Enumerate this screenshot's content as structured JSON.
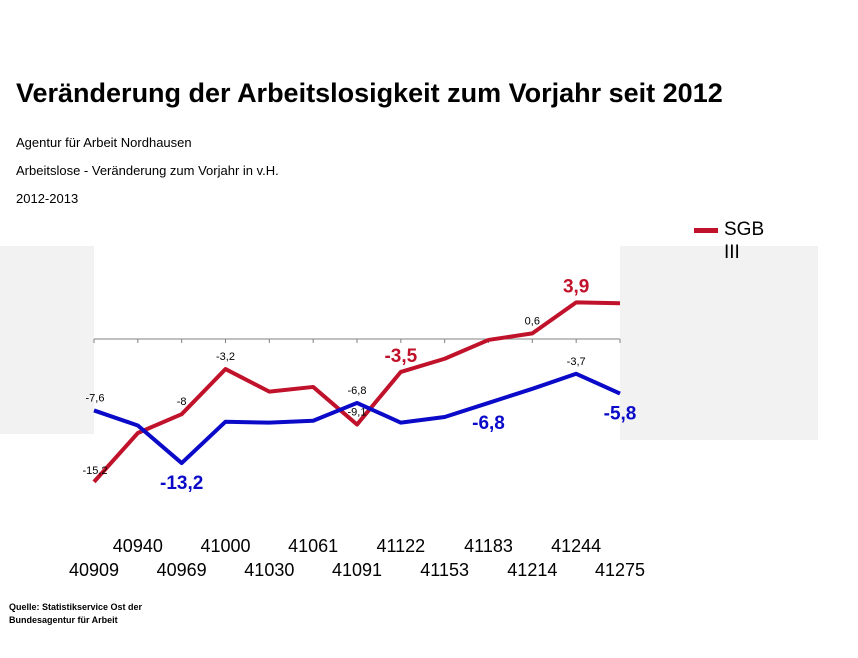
{
  "title": "Veränderung der Arbeitslosigkeit zum Vorjahr seit 2012",
  "subtitles": [
    "Agentur für Arbeit Nordhausen",
    "Arbeitslose  - Veränderung zum Vorjahr in v.H.",
    "2012-2013"
  ],
  "source": "Quelle: Statistikservice Ost der Bundesagentur für Arbeit",
  "chart_data": {
    "type": "line",
    "title": "Veränderung der Arbeitslosigkeit zum Vorjahr seit 2012",
    "x": [
      40909,
      40940,
      40969,
      41000,
      41030,
      41061,
      41091,
      41122,
      41153,
      41183,
      41214,
      41244,
      41275
    ],
    "x_tick_labels": [
      "40909",
      "40940",
      "40969",
      "41000",
      "41030",
      "41061",
      "41091",
      "41122",
      "41153",
      "41183",
      "41214",
      "41244",
      "41275"
    ],
    "ylim": [
      -16,
      6
    ],
    "grid": false,
    "legend": {
      "placement": "top-right",
      "entries": [
        "SGB III"
      ]
    },
    "series": [
      {
        "name": "SGB III",
        "color": "#c0122a",
        "values": [
          -15.2,
          -10.0,
          -8.0,
          -3.2,
          -5.6,
          -5.1,
          -9.1,
          -3.5,
          -2.1,
          -0.1,
          0.6,
          3.9,
          3.8
        ],
        "labels": [
          "-15,2",
          null,
          "-8",
          "-3,2",
          null,
          null,
          "-9,1",
          "-3,5",
          null,
          null,
          "0,6",
          "3,9",
          null
        ],
        "emphasized_labels": [
          7,
          11
        ]
      },
      {
        "color": "#0a0ac8",
        "values": [
          -7.6,
          -9.2,
          -13.2,
          -8.8,
          -8.9,
          -8.7,
          -6.8,
          -8.9,
          -8.3,
          -6.8,
          -5.3,
          -3.7,
          -5.8
        ],
        "labels": [
          "-7,6",
          null,
          "-13,2",
          null,
          null,
          null,
          "-6,8",
          null,
          null,
          "-6,8",
          null,
          "-3,7",
          "-5,8"
        ],
        "emphasized_labels": [
          2,
          9,
          12
        ]
      }
    ]
  }
}
